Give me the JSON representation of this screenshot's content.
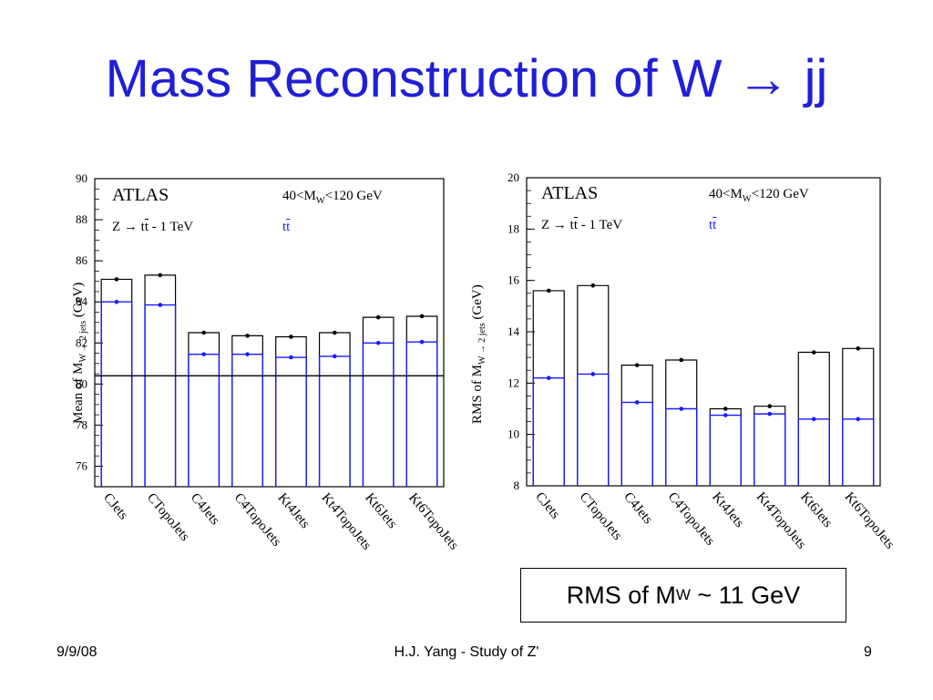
{
  "slide": {
    "title": "Mass Reconstruction of W → jj",
    "note_text": "RMS of M",
    "note_sub": "W",
    "note_tail": " ~ 11 GeV",
    "footer_date": "9/9/08",
    "footer_center": "H.J. Yang - Study of Z'",
    "footer_page": "9"
  },
  "colors": {
    "title": "#1f1fd6",
    "series_2jets": "#1a1aff",
    "series_all": "#000000"
  },
  "chart_data": [
    {
      "type": "bar",
      "categories": [
        "CJets",
        "CTopoJets",
        "C4Jets",
        "C4TopoJets",
        "Kt4Jets",
        "Kt4TopoJets",
        "Kt6Jets",
        "Kt6TopoJets"
      ],
      "series": [
        {
          "values": [
            85.1,
            85.3,
            82.5,
            82.35,
            82.3,
            82.5,
            83.25,
            83.3
          ],
          "color": "#000000"
        },
        {
          "values": [
            84.0,
            83.85,
            81.45,
            81.45,
            81.3,
            81.35,
            82.0,
            82.05
          ],
          "color": "#1a1aff"
        }
      ],
      "reference_line": 80.4,
      "ylim": [
        75,
        90
      ],
      "yticks": [
        76,
        78,
        80,
        82,
        84,
        86,
        88,
        90
      ],
      "ylabel_pre": "Mean of M",
      "ylabel_sub": "W → 2 jets",
      "ylabel_post": "  (GeV)",
      "atlas_label": "ATLAS",
      "process_label": "Z → t",
      "process_bar": "t",
      "process_tail": " - 1 TeV",
      "cut_pre": "40<M",
      "cut_sub": "W",
      "cut_post": "<120 GeV",
      "sample_label": "t",
      "sample_bar": "t"
    },
    {
      "type": "bar",
      "categories": [
        "CJets",
        "CTopoJets",
        "C4Jets",
        "C4TopoJets",
        "Kt4Jets",
        "Kt4TopoJets",
        "Kt6Jets",
        "Kt6TopoJets"
      ],
      "series": [
        {
          "values": [
            15.6,
            15.8,
            12.7,
            12.9,
            11.0,
            11.1,
            13.2,
            13.35
          ],
          "color": "#000000"
        },
        {
          "values": [
            12.2,
            12.35,
            11.25,
            11.0,
            10.75,
            10.8,
            10.6,
            10.6
          ],
          "color": "#1a1aff"
        }
      ],
      "ylim": [
        8,
        20
      ],
      "yticks": [
        8,
        10,
        12,
        14,
        16,
        18,
        20
      ],
      "ylabel_pre": "RMS of M",
      "ylabel_sub": "W → 2 jets",
      "ylabel_post": "  (GeV)",
      "atlas_label": "ATLAS",
      "process_label": "Z → t",
      "process_bar": "t",
      "process_tail": " - 1 TeV",
      "cut_pre": "40<M",
      "cut_sub": "W",
      "cut_post": "<120 GeV",
      "sample_label": "t",
      "sample_bar": "t"
    }
  ]
}
